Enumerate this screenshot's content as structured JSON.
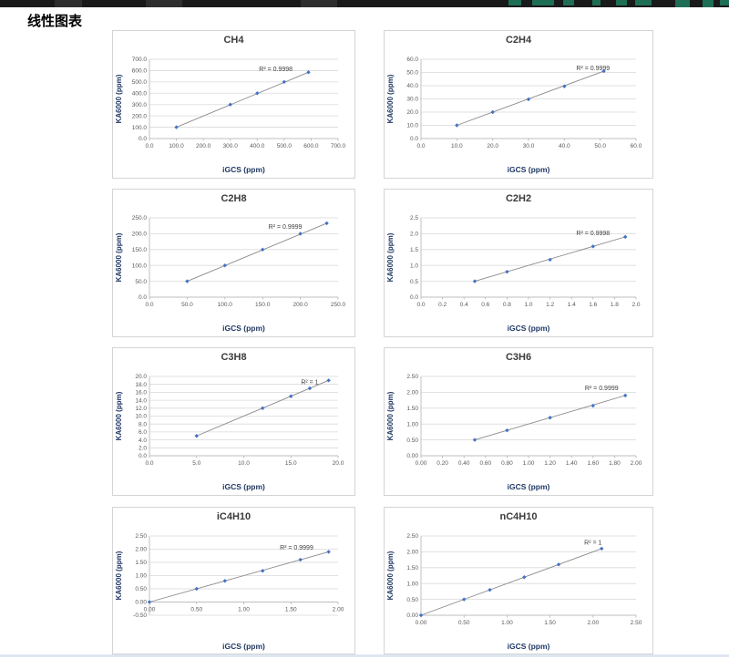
{
  "page": {
    "title": "线性图表",
    "top_bar_color": "#1a1a1a",
    "top_bar_accent_color": "#1e6e55",
    "bottom_strip_color": "#dde6f1"
  },
  "chart_style": {
    "marker_color": "#4472c4",
    "line_color": "#8a8a8a",
    "grid_color": "#d9d9d9",
    "axis_color": "#b3b3b3",
    "tick_color": "#595959",
    "title_color": "#3b3b3b",
    "r2_color": "#404040",
    "axis_title_color": "#1f3864"
  },
  "chart_data": [
    {
      "type": "scatter",
      "title": "CH4",
      "r2_label": "R² = 0.9998",
      "r2_pos": [
        0.67,
        0.15
      ],
      "xlabel": "iGCS (ppm)",
      "ylabel": "KA6000 (ppm)",
      "xlim": [
        0,
        700
      ],
      "ylim": [
        0,
        700
      ],
      "grid": true,
      "xticks": [
        "0.0",
        "100.0",
        "200.0",
        "300.0",
        "400.0",
        "500.0",
        "600.0",
        "700.0"
      ],
      "yticks": [
        "0.0",
        "100.0",
        "200.0",
        "300.0",
        "400.0",
        "500.0",
        "600.0",
        "700.0"
      ],
      "points": [
        [
          100,
          100
        ],
        [
          300,
          300
        ],
        [
          400,
          400
        ],
        [
          500,
          500
        ],
        [
          590,
          585
        ]
      ]
    },
    {
      "type": "scatter",
      "title": "C2H4",
      "r2_label": "R² = 0.9999",
      "r2_pos": [
        0.8,
        0.14
      ],
      "xlabel": "iGCS (ppm)",
      "ylabel": "KA6000 (ppm)",
      "xlim": [
        0,
        60
      ],
      "ylim": [
        0,
        60
      ],
      "grid": true,
      "xticks": [
        "0.0",
        "10.0",
        "20.0",
        "30.0",
        "40.0",
        "50.0",
        "60.0"
      ],
      "yticks": [
        "0.0",
        "10.0",
        "20.0",
        "30.0",
        "40.0",
        "50.0",
        "60.0"
      ],
      "points": [
        [
          10,
          10
        ],
        [
          20,
          20
        ],
        [
          30,
          29.7
        ],
        [
          40,
          39.5
        ],
        [
          51,
          51
        ]
      ]
    },
    {
      "type": "scatter",
      "title": "C2H8",
      "r2_label": "R² = 0.9999",
      "r2_pos": [
        0.72,
        0.14
      ],
      "xlabel": "iGCS (ppm)",
      "ylabel": "KA6000 (ppm)",
      "xlim": [
        0,
        250
      ],
      "ylim": [
        0,
        250
      ],
      "grid": true,
      "xticks": [
        "0.0",
        "50.0",
        "100.0",
        "150.0",
        "200.0",
        "250.0"
      ],
      "yticks": [
        "0.0",
        "50.0",
        "100.0",
        "150.0",
        "200.0",
        "250.0"
      ],
      "points": [
        [
          50,
          50
        ],
        [
          100,
          100
        ],
        [
          150,
          150
        ],
        [
          200,
          200
        ],
        [
          235,
          233
        ]
      ]
    },
    {
      "type": "scatter",
      "title": "C2H2",
      "r2_label": "R² = 0.9998",
      "r2_pos": [
        0.8,
        0.22
      ],
      "xlabel": "iGCS (ppm)",
      "ylabel": "KA6000 (ppm)",
      "xlim": [
        0,
        2.0
      ],
      "ylim": [
        0,
        2.5
      ],
      "grid": true,
      "xticks": [
        "0.0",
        "0.2",
        "0.4",
        "0.6",
        "0.8",
        "1.0",
        "1.2",
        "1.4",
        "1.6",
        "1.8",
        "2.0"
      ],
      "yticks": [
        "0.0",
        "0.5",
        "1.0",
        "1.5",
        "2.0",
        "2.5"
      ],
      "points": [
        [
          0.5,
          0.5
        ],
        [
          0.8,
          0.8
        ],
        [
          1.2,
          1.18
        ],
        [
          1.6,
          1.6
        ],
        [
          1.9,
          1.9
        ]
      ]
    },
    {
      "type": "scatter",
      "title": "C3H8",
      "r2_label": "R² = 1",
      "r2_pos": [
        0.85,
        0.1
      ],
      "xlabel": "iGCS (ppm)",
      "ylabel": "KA6000 (ppm)",
      "xlim": [
        0,
        20
      ],
      "ylim": [
        0,
        20
      ],
      "grid": true,
      "xticks": [
        "0.0",
        "5.0",
        "10.0",
        "15.0",
        "20.0"
      ],
      "yticks": [
        "0.0",
        "2.0",
        "4.0",
        "6.0",
        "8.0",
        "10.0",
        "12.0",
        "14.0",
        "16.0",
        "18.0",
        "20.0"
      ],
      "points": [
        [
          5,
          5
        ],
        [
          12,
          12
        ],
        [
          15,
          15
        ],
        [
          17,
          17
        ],
        [
          19,
          19
        ]
      ]
    },
    {
      "type": "scatter",
      "title": "C3H6",
      "r2_label": "R² = 0.9999",
      "r2_pos": [
        0.84,
        0.17
      ],
      "xlabel": "iGCS (ppm)",
      "ylabel": "KA6000 (ppm)",
      "xlim": [
        0,
        2.0
      ],
      "ylim": [
        0,
        2.5
      ],
      "grid": true,
      "xticks": [
        "0.00",
        "0.20",
        "0.40",
        "0.60",
        "0.80",
        "1.00",
        "1.20",
        "1.40",
        "1.60",
        "1.80",
        "2.00"
      ],
      "yticks": [
        "0.00",
        "0.50",
        "1.00",
        "1.50",
        "2.00",
        "2.50"
      ],
      "points": [
        [
          0.5,
          0.5
        ],
        [
          0.8,
          0.8
        ],
        [
          1.2,
          1.2
        ],
        [
          1.6,
          1.58
        ],
        [
          1.9,
          1.9
        ]
      ]
    },
    {
      "type": "scatter",
      "title": "iC4H10",
      "r2_label": "R² = 0.9999",
      "r2_pos": [
        0.78,
        0.17
      ],
      "xlabel": "iGCS (ppm)",
      "ylabel": "KA6000 (ppm)",
      "xlim": [
        0,
        2.0
      ],
      "ylim": [
        -0.5,
        2.5
      ],
      "grid": true,
      "xticks": [
        "0.00",
        "0.50",
        "1.00",
        "1.50",
        "2.00"
      ],
      "yticks": [
        "-0.50",
        "0.00",
        "0.50",
        "1.00",
        "1.50",
        "2.00",
        "2.50"
      ],
      "points": [
        [
          0,
          0
        ],
        [
          0.5,
          0.5
        ],
        [
          0.8,
          0.8
        ],
        [
          1.2,
          1.18
        ],
        [
          1.6,
          1.6
        ],
        [
          1.9,
          1.9
        ]
      ]
    },
    {
      "type": "scatter",
      "title": "nC4H10",
      "r2_label": "R² = 1",
      "r2_pos": [
        0.8,
        0.11
      ],
      "xlabel": "iGCS (ppm)",
      "ylabel": "KA6000 (ppm)",
      "xlim": [
        0,
        2.5
      ],
      "ylim": [
        0,
        2.5
      ],
      "grid": true,
      "xticks": [
        "0.00",
        "0.50",
        "1.00",
        "1.50",
        "2.00",
        "2.50"
      ],
      "yticks": [
        "0.00",
        "0.50",
        "1.00",
        "1.50",
        "2.00",
        "2.50"
      ],
      "points": [
        [
          0,
          0
        ],
        [
          0.5,
          0.5
        ],
        [
          0.8,
          0.8
        ],
        [
          1.2,
          1.2
        ],
        [
          1.6,
          1.6
        ],
        [
          2.1,
          2.1
        ]
      ]
    }
  ]
}
